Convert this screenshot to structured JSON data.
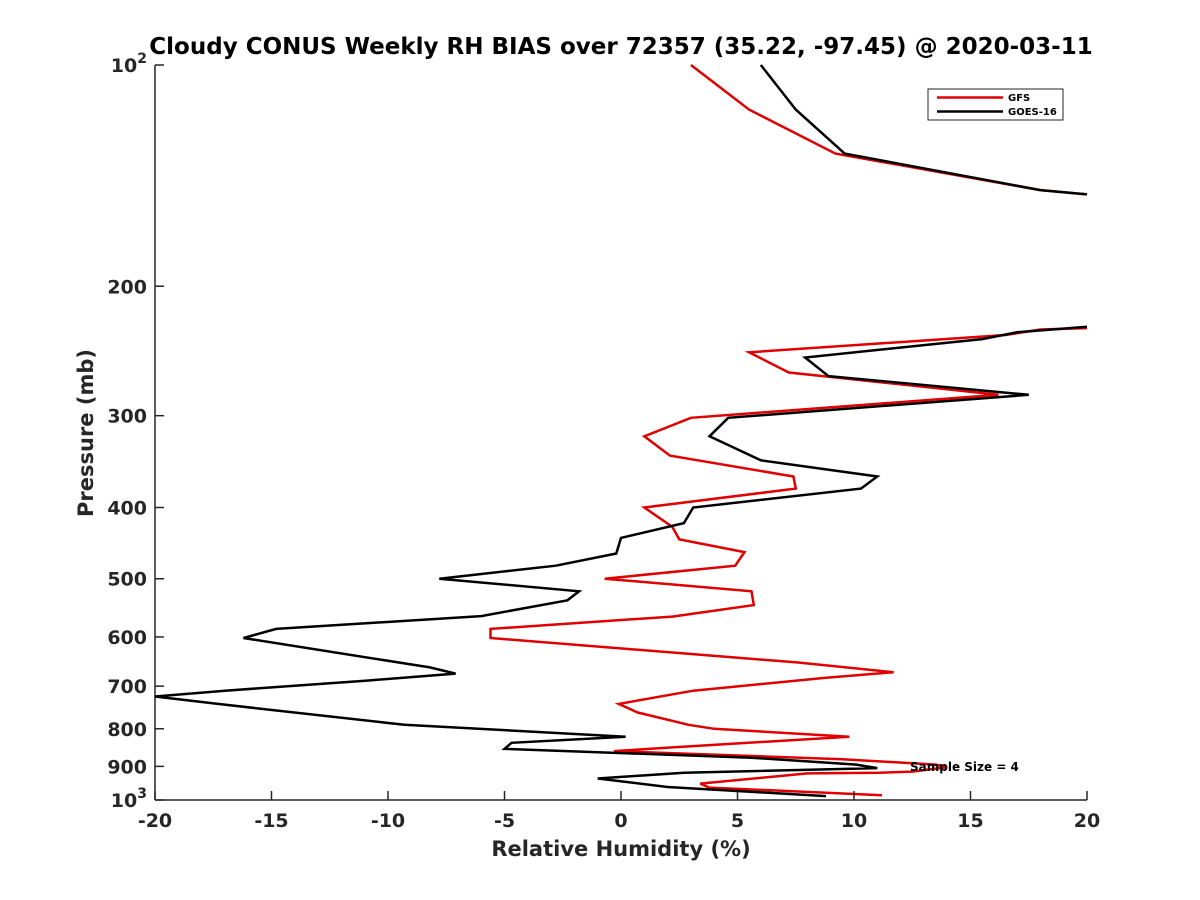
{
  "chart_data": {
    "type": "line",
    "title": "Cloudy CONUS Weekly RH BIAS over 72357 (35.22, -97.45) @ 2020-03-11",
    "xlabel": "Relative Humidity (%)",
    "ylabel": "Pressure (mb)",
    "xlim": [
      -20,
      20
    ],
    "ylim": [
      100,
      1000
    ],
    "y_scale": "log",
    "y_reversed": true,
    "grid": false,
    "legend_position": "top-right",
    "x_ticks": [
      -20,
      -15,
      -10,
      -5,
      0,
      5,
      10,
      15,
      20
    ],
    "x_tick_labels": [
      "-20",
      "-15",
      "-10",
      "-5",
      "0",
      "5",
      "10",
      "15",
      "20"
    ],
    "y_ticks": [
      100,
      200,
      300,
      400,
      500,
      600,
      700,
      800,
      900,
      1000
    ],
    "y_tick_labels": [
      {
        "base": "10",
        "exp": "2"
      },
      {
        "base": "200",
        "exp": ""
      },
      {
        "base": "300",
        "exp": ""
      },
      {
        "base": "400",
        "exp": ""
      },
      {
        "base": "500",
        "exp": ""
      },
      {
        "base": "600",
        "exp": ""
      },
      {
        "base": "700",
        "exp": ""
      },
      {
        "base": "800",
        "exp": ""
      },
      {
        "base": "900",
        "exp": ""
      },
      {
        "base": "10",
        "exp": "3"
      }
    ],
    "annotation": "Sample Size = 4",
    "series": [
      {
        "name": "GFS",
        "color": "#e00000",
        "segments": [
          [
            [
              3.0,
              100
            ],
            [
              5.5,
              115
            ],
            [
              9.2,
              132
            ],
            [
              18.0,
              148
            ],
            [
              20.0,
              150
            ]
          ],
          [
            [
              20.0,
              228
            ],
            [
              18.0,
              229
            ],
            [
              16.5,
              233
            ],
            [
              5.5,
              246
            ],
            [
              7.2,
              262
            ],
            [
              16.2,
              281
            ],
            [
              3.0,
              302
            ],
            [
              1.0,
              320
            ],
            [
              2.1,
              340
            ],
            [
              7.4,
              363
            ],
            [
              7.5,
              377
            ],
            [
              1.0,
              400
            ],
            [
              2.2,
              425
            ],
            [
              2.5,
              442
            ],
            [
              5.3,
              460
            ],
            [
              4.9,
              480
            ],
            [
              -0.7,
              500
            ],
            [
              5.6,
              520
            ],
            [
              5.7,
              543
            ],
            [
              2.2,
              563
            ],
            [
              -5.6,
              585
            ],
            [
              -5.6,
              602
            ],
            [
              7.6,
              650
            ],
            [
              11.7,
              670
            ],
            [
              8.8,
              682
            ],
            [
              3.1,
              710
            ],
            [
              -0.1,
              740
            ],
            [
              0.7,
              760
            ],
            [
              2.9,
              790
            ],
            [
              4.0,
              800
            ],
            [
              9.8,
              820
            ],
            [
              2.2,
              848
            ],
            [
              -0.3,
              858
            ],
            [
              9.5,
              880
            ],
            [
              13.5,
              895
            ],
            [
              14.0,
              902
            ],
            [
              12.5,
              915
            ],
            [
              11.1,
              918
            ],
            [
              8.0,
              920
            ],
            [
              3.4,
              950
            ],
            [
              3.8,
              962
            ],
            [
              11.2,
              985
            ]
          ]
        ]
      },
      {
        "name": "GOES-16",
        "color": "#000000",
        "segments": [
          [
            [
              6.0,
              100
            ],
            [
              7.5,
              115
            ],
            [
              9.6,
              132
            ],
            [
              18.0,
              148
            ],
            [
              20.0,
              150
            ]
          ],
          [
            [
              20.0,
              227
            ],
            [
              17.0,
              231
            ],
            [
              15.5,
              236
            ],
            [
              7.9,
              250
            ],
            [
              8.9,
              265
            ],
            [
              17.5,
              281
            ],
            [
              4.6,
              302
            ],
            [
              3.8,
              320
            ],
            [
              6.0,
              345
            ],
            [
              11.0,
              363
            ],
            [
              10.3,
              377
            ],
            [
              3.1,
              400
            ],
            [
              2.7,
              420
            ],
            [
              0.0,
              440
            ],
            [
              -0.2,
              462
            ],
            [
              -2.8,
              480
            ],
            [
              -7.8,
              500
            ],
            [
              -1.8,
              520
            ],
            [
              -2.3,
              535
            ],
            [
              -6.0,
              562
            ],
            [
              -14.8,
              585
            ],
            [
              -16.2,
              602
            ],
            [
              -8.2,
              660
            ],
            [
              -7.1,
              673
            ],
            [
              -10.9,
              688
            ],
            [
              -17.0,
              710
            ],
            [
              -20.0,
              723
            ],
            [
              -17.3,
              740
            ],
            [
              -9.3,
              790
            ],
            [
              0.2,
              820
            ],
            [
              -4.7,
              836
            ],
            [
              -5.0,
              852
            ],
            [
              5.6,
              876
            ],
            [
              10.1,
              895
            ],
            [
              11.0,
              905
            ],
            [
              2.7,
              918
            ],
            [
              -1.0,
              935
            ],
            [
              2.0,
              960
            ],
            [
              8.8,
              988
            ]
          ]
        ]
      }
    ]
  }
}
